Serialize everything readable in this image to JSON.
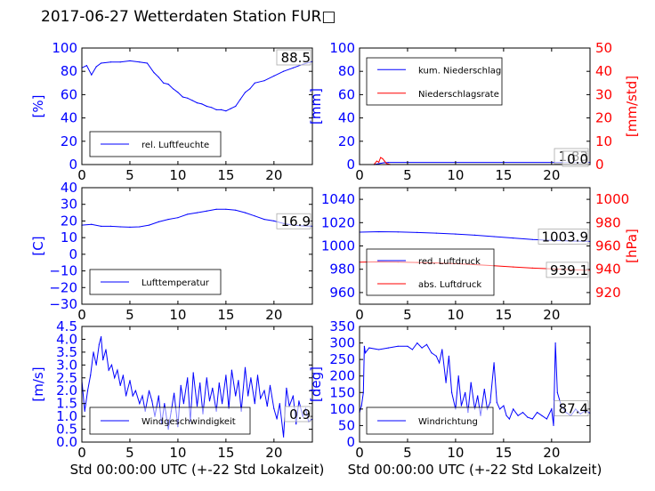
{
  "title": "2017-06-27 Wetterdaten Station FUR□",
  "colors": {
    "primary": "#0000ff",
    "secondary": "#ff0000",
    "axis": "#000000"
  },
  "xlabel": "Std 00:00:00 UTC (+-22 Std Lokalzeit)",
  "chart_data": [
    {
      "type": "line",
      "ylabel": "[%]",
      "xlim": [
        0,
        24
      ],
      "ylim": [
        0,
        100
      ],
      "xticks": [
        "0",
        "5",
        "10",
        "15",
        "20"
      ],
      "yticks": [
        "0",
        "20",
        "40",
        "60",
        "80",
        "100"
      ],
      "legend": "lower-left",
      "last_value": "88.5",
      "series": [
        {
          "name": "rel. Luftfeuchte",
          "color": "#0000ff",
          "x": [
            0,
            0.5,
            1,
            1.5,
            2,
            3,
            4,
            5,
            6,
            6.8,
            7.5,
            8,
            8.5,
            9,
            9.5,
            10,
            10.5,
            11,
            11.5,
            12,
            12.5,
            13,
            13.5,
            14,
            14.5,
            15,
            15.5,
            16,
            16.5,
            17,
            17.5,
            18,
            19,
            20,
            21,
            22,
            23,
            24
          ],
          "y": [
            83,
            85,
            77,
            84,
            87,
            88,
            88,
            89,
            88,
            87,
            79,
            75,
            70,
            69,
            65,
            62,
            58,
            57,
            55,
            53,
            52,
            50,
            49,
            47,
            47,
            46,
            48,
            50,
            56,
            62,
            65,
            70,
            72,
            76,
            80,
            83,
            86,
            88.5
          ]
        }
      ]
    },
    {
      "type": "line",
      "ylabel": "[mm]",
      "ylabel2": "[mm/std]",
      "xlim": [
        0,
        24
      ],
      "ylim": [
        0,
        100
      ],
      "ylim2": [
        0,
        50
      ],
      "xticks": [
        "0",
        "5",
        "10",
        "15",
        "20"
      ],
      "yticks": [
        "0",
        "20",
        "40",
        "60",
        "80",
        "100"
      ],
      "yticks2": [
        "0",
        "10",
        "20",
        "30",
        "40",
        "50"
      ],
      "legend": "upper-left",
      "last_value": "1.83",
      "last_value2": "0.0",
      "series": [
        {
          "name": "kum. Niederschlag",
          "color": "#0000ff",
          "axis": "left",
          "x": [
            0,
            1.5,
            2,
            2.5,
            3,
            24
          ],
          "y": [
            0,
            0,
            0.8,
            1.5,
            1.83,
            1.83
          ]
        },
        {
          "name": "Niederschlagsrate",
          "color": "#ff0000",
          "axis": "right",
          "x": [
            0,
            1.5,
            1.8,
            2,
            2.2,
            2.4,
            2.6,
            2.8,
            3.2,
            24
          ],
          "y": [
            0,
            0,
            1.5,
            1,
            3,
            2.5,
            1.5,
            0.5,
            0,
            0
          ]
        }
      ]
    },
    {
      "type": "line",
      "ylabel": "[C]",
      "xlim": [
        0,
        24
      ],
      "ylim": [
        -30,
        40
      ],
      "xticks": [
        "0",
        "5",
        "10",
        "15",
        "20"
      ],
      "yticks": [
        "−30",
        "−20",
        "−10",
        "0",
        "10",
        "20",
        "30",
        "40"
      ],
      "legend": "lower-left",
      "last_value": "16.9",
      "series": [
        {
          "name": "Lufttemperatur",
          "color": "#0000ff",
          "x": [
            0,
            1,
            2,
            3,
            4,
            5,
            6,
            7,
            8,
            9,
            10,
            11,
            12,
            13,
            14,
            15,
            16,
            17,
            18,
            19,
            20,
            21,
            22,
            23,
            24
          ],
          "y": [
            17.5,
            18,
            16.8,
            16.8,
            16.5,
            16.3,
            16.5,
            17.5,
            19.5,
            21,
            22,
            24,
            25,
            26,
            27,
            27,
            26.5,
            25,
            23,
            21,
            20,
            18.5,
            17.5,
            17,
            16.9
          ]
        }
      ]
    },
    {
      "type": "line",
      "ylabel2": "[hPa]",
      "xlim": [
        0,
        24
      ],
      "ylim": [
        950,
        1050
      ],
      "ylim2": [
        910,
        1010
      ],
      "xticks": [
        "0",
        "5",
        "10",
        "15",
        "20"
      ],
      "yticks": [
        "960",
        "980",
        "1000",
        "1020",
        "1040"
      ],
      "yticks2": [
        "920",
        "940",
        "960",
        "980",
        "1000"
      ],
      "legend": "lower-left",
      "last_value": "1003.9",
      "last_value2": "939.1",
      "series": [
        {
          "name": "red. Luftdruck",
          "color": "#0000ff",
          "axis": "left",
          "x": [
            0,
            2,
            4,
            6,
            8,
            10,
            12,
            14,
            16,
            18,
            20,
            22,
            24
          ],
          "y": [
            1011.8,
            1012.2,
            1012,
            1011.5,
            1011,
            1010.2,
            1009.2,
            1008,
            1006.8,
            1005.5,
            1004.8,
            1004.2,
            1003.9
          ]
        },
        {
          "name": "abs. Luftdruck",
          "color": "#ff0000",
          "axis": "right",
          "x": [
            0,
            2,
            4,
            6,
            8,
            10,
            12,
            14,
            16,
            18,
            20,
            22,
            24
          ],
          "y": [
            946,
            946.3,
            946.2,
            945.8,
            945.4,
            944.8,
            944,
            943,
            942,
            941,
            940.3,
            939.6,
            939.1
          ]
        }
      ]
    },
    {
      "type": "line",
      "ylabel": "[m/s]",
      "xlim": [
        0,
        24
      ],
      "ylim": [
        0,
        4.5
      ],
      "xticks": [
        "0",
        "5",
        "10",
        "15",
        "20"
      ],
      "yticks": [
        "0.0",
        "0.5",
        "1.0",
        "1.5",
        "2.0",
        "2.5",
        "3.0",
        "3.5",
        "4.0",
        "4.5"
      ],
      "legend": "lower-left",
      "last_value": "0.9",
      "series": [
        {
          "name": "Windgeschwindigkeit",
          "color": "#0000ff",
          "x": [
            0,
            0.3,
            0.6,
            0.9,
            1.2,
            1.5,
            1.8,
            2,
            2.2,
            2.5,
            2.8,
            3.1,
            3.4,
            3.7,
            4,
            4.3,
            4.6,
            5,
            5.3,
            5.6,
            6,
            6.3,
            6.6,
            7,
            7.3,
            7.6,
            8,
            8.3,
            8.6,
            9,
            9.3,
            9.6,
            10,
            10.3,
            10.6,
            11,
            11.3,
            11.6,
            12,
            12.3,
            12.6,
            13,
            13.3,
            13.6,
            14,
            14.3,
            14.6,
            15,
            15.3,
            15.6,
            16,
            16.3,
            16.6,
            17,
            17.3,
            17.6,
            18,
            18.3,
            18.6,
            19,
            19.3,
            19.6,
            20,
            20.3,
            20.6,
            21,
            21.3,
            21.6,
            22,
            22.3,
            22.6,
            23,
            23.3,
            23.6,
            24
          ],
          "y": [
            2.4,
            1.2,
            2,
            2.6,
            3.5,
            3,
            3.8,
            4.1,
            3.2,
            3.6,
            2.8,
            3,
            2.5,
            2.8,
            2.2,
            2.6,
            1.8,
            2.4,
            1.8,
            2,
            1.5,
            1.8,
            1.2,
            2,
            1.6,
            1,
            1.8,
            0.7,
            1.5,
            0.5,
            1.2,
            1.9,
            0.6,
            2.2,
            1.5,
            2.5,
            0.8,
            2.7,
            1.4,
            2.3,
            1.1,
            2.5,
            1.6,
            2.1,
            1.2,
            2.3,
            1.5,
            2.6,
            1.3,
            2.8,
            1.8,
            2.4,
            1.2,
            2.9,
            1.8,
            2.5,
            1.5,
            2.6,
            1.7,
            2,
            1.4,
            2.2,
            1.3,
            0.9,
            1.5,
            0.2,
            2.1,
            1.4,
            1.8,
            0.7,
            1.6,
            1,
            1.3,
            0.8,
            0.9
          ]
        }
      ]
    },
    {
      "type": "line",
      "ylabel": "[deg]",
      "xlim": [
        0,
        24
      ],
      "ylim": [
        0,
        350
      ],
      "xticks": [
        "0",
        "5",
        "10",
        "15",
        "20"
      ],
      "yticks": [
        "0",
        "50",
        "100",
        "150",
        "200",
        "250",
        "300",
        "350"
      ],
      "legend": "lower-left",
      "last_value": "87.4",
      "series": [
        {
          "name": "Windrichtung",
          "color": "#0000ff",
          "x": [
            0,
            0.2,
            0.4,
            0.5,
            0.6,
            1,
            2,
            3,
            4,
            5,
            5.5,
            6,
            6.5,
            7,
            7.5,
            8,
            8.3,
            8.6,
            9,
            9.3,
            9.6,
            10,
            10.3,
            10.6,
            11,
            11.3,
            11.6,
            12,
            12.3,
            12.6,
            13,
            13.3,
            13.6,
            14,
            14.3,
            14.6,
            15,
            15.3,
            15.6,
            16,
            16.5,
            17,
            17.5,
            18,
            18.5,
            19,
            19.5,
            20,
            20.2,
            20.4,
            20.6,
            21,
            21.5,
            22,
            22.5,
            23,
            23.5,
            24
          ],
          "y": [
            90,
            110,
            150,
            290,
            270,
            285,
            280,
            285,
            290,
            290,
            280,
            300,
            285,
            295,
            270,
            260,
            240,
            280,
            180,
            260,
            150,
            100,
            200,
            110,
            150,
            90,
            180,
            100,
            140,
            80,
            160,
            100,
            120,
            240,
            120,
            100,
            110,
            80,
            70,
            100,
            80,
            90,
            75,
            70,
            90,
            80,
            70,
            100,
            50,
            300,
            150,
            110,
            90,
            80,
            100,
            85,
            95,
            87.4
          ]
        }
      ]
    }
  ]
}
